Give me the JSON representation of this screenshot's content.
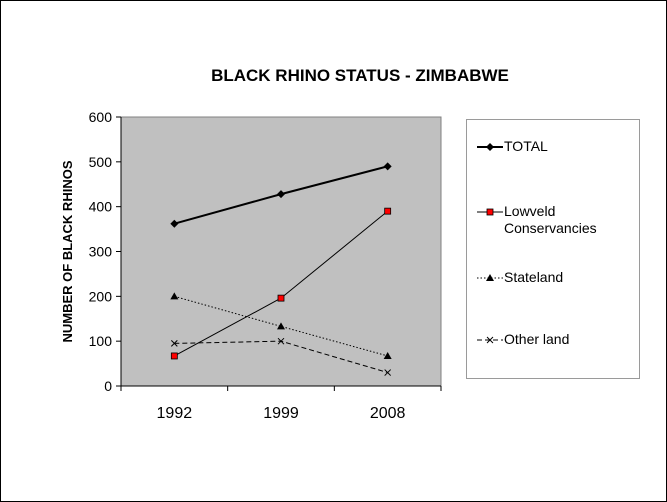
{
  "chart_data": {
    "type": "line",
    "title": "BLACK RHINO STATUS - ZIMBABWE",
    "xlabel": "",
    "ylabel": "NUMBER OF BLACK RHINOS",
    "categories": [
      "1992",
      "1999",
      "2008"
    ],
    "ylim": [
      0,
      600
    ],
    "yticks": [
      "0",
      "100",
      "200",
      "300",
      "400",
      "500",
      "600"
    ],
    "grid": false,
    "plot_background": "#c0c0c0",
    "legend_position": "right",
    "series": [
      {
        "name": "TOTAL",
        "values": [
          362,
          428,
          490
        ],
        "color": "#000000",
        "marker": "diamond",
        "dash": "solid",
        "width": 2
      },
      {
        "name": "Lowveld Conservancies",
        "values": [
          67,
          196,
          390
        ],
        "color": "#000000",
        "marker": "square",
        "marker_color": "#ff0000",
        "dash": "solid",
        "width": 1
      },
      {
        "name": "Stateland",
        "values": [
          200,
          133,
          67
        ],
        "color": "#000000",
        "marker": "triangle",
        "dash": "dotted",
        "width": 1
      },
      {
        "name": "Other land",
        "values": [
          95,
          100,
          30
        ],
        "color": "#000000",
        "marker": "x",
        "dash": "dashed",
        "width": 1
      }
    ]
  }
}
